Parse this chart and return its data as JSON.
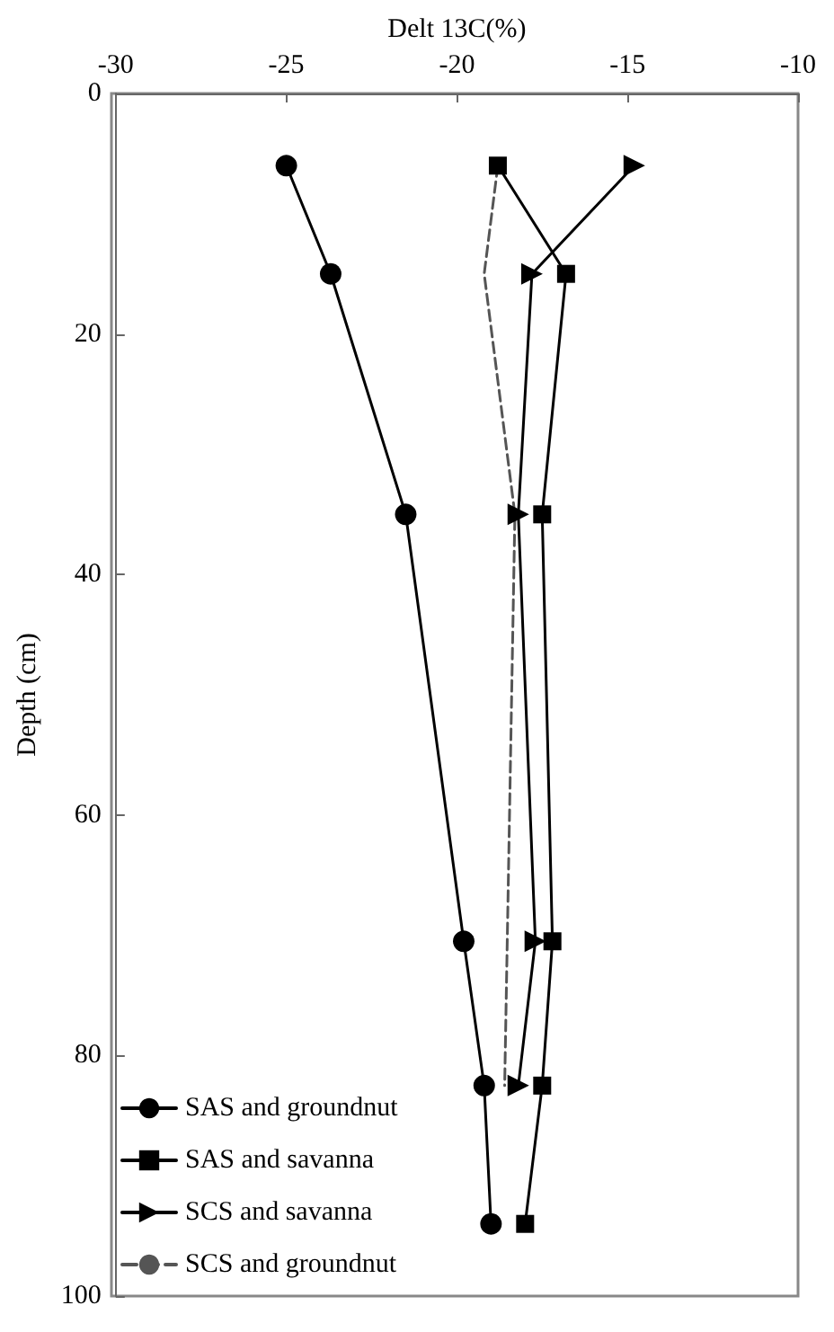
{
  "chart_data": {
    "type": "line",
    "xlabel": "Delt 13C(%)",
    "ylabel": "Depth (cm)",
    "xlim": [
      -30,
      -10
    ],
    "xticks": [
      -30,
      -25,
      -20,
      -15,
      -10
    ],
    "ylim": [
      100,
      0
    ],
    "yticks": [
      0,
      20,
      40,
      60,
      80,
      100
    ],
    "grid": false,
    "legend": "bottom left",
    "series": [
      {
        "name": "SAS and groundnut",
        "color": "#000000",
        "marker": "circle",
        "line_style": "solid",
        "x": [
          -25,
          -23.7,
          -21.5,
          -19.8,
          -19.2,
          -19
        ],
        "values": [
          6,
          15,
          35,
          70.5,
          82.5,
          94
        ]
      },
      {
        "name": "SAS and savanna",
        "color": "#000000",
        "marker": "square",
        "line_style": "solid",
        "x": [
          -18.8,
          -16.8,
          -17.5,
          -17.2,
          -17.5,
          -18
        ],
        "values": [
          6,
          15,
          35,
          70.5,
          82.5,
          94
        ]
      },
      {
        "name": "SCS and savanna",
        "color": "#000000",
        "marker": "triangle",
        "line_style": "solid",
        "x": [
          -14.8,
          -17.8,
          -18.2,
          -17.7,
          -18.2
        ],
        "values": [
          6,
          15,
          35,
          70.5,
          82.5
        ]
      },
      {
        "name": "SCS and groundnut",
        "color": "#555555",
        "marker": "none",
        "line_style": "dashed",
        "x": [
          -18.8,
          -19.2,
          -18.3,
          -18.6
        ],
        "values": [
          6,
          15,
          35,
          82.5
        ]
      }
    ]
  }
}
